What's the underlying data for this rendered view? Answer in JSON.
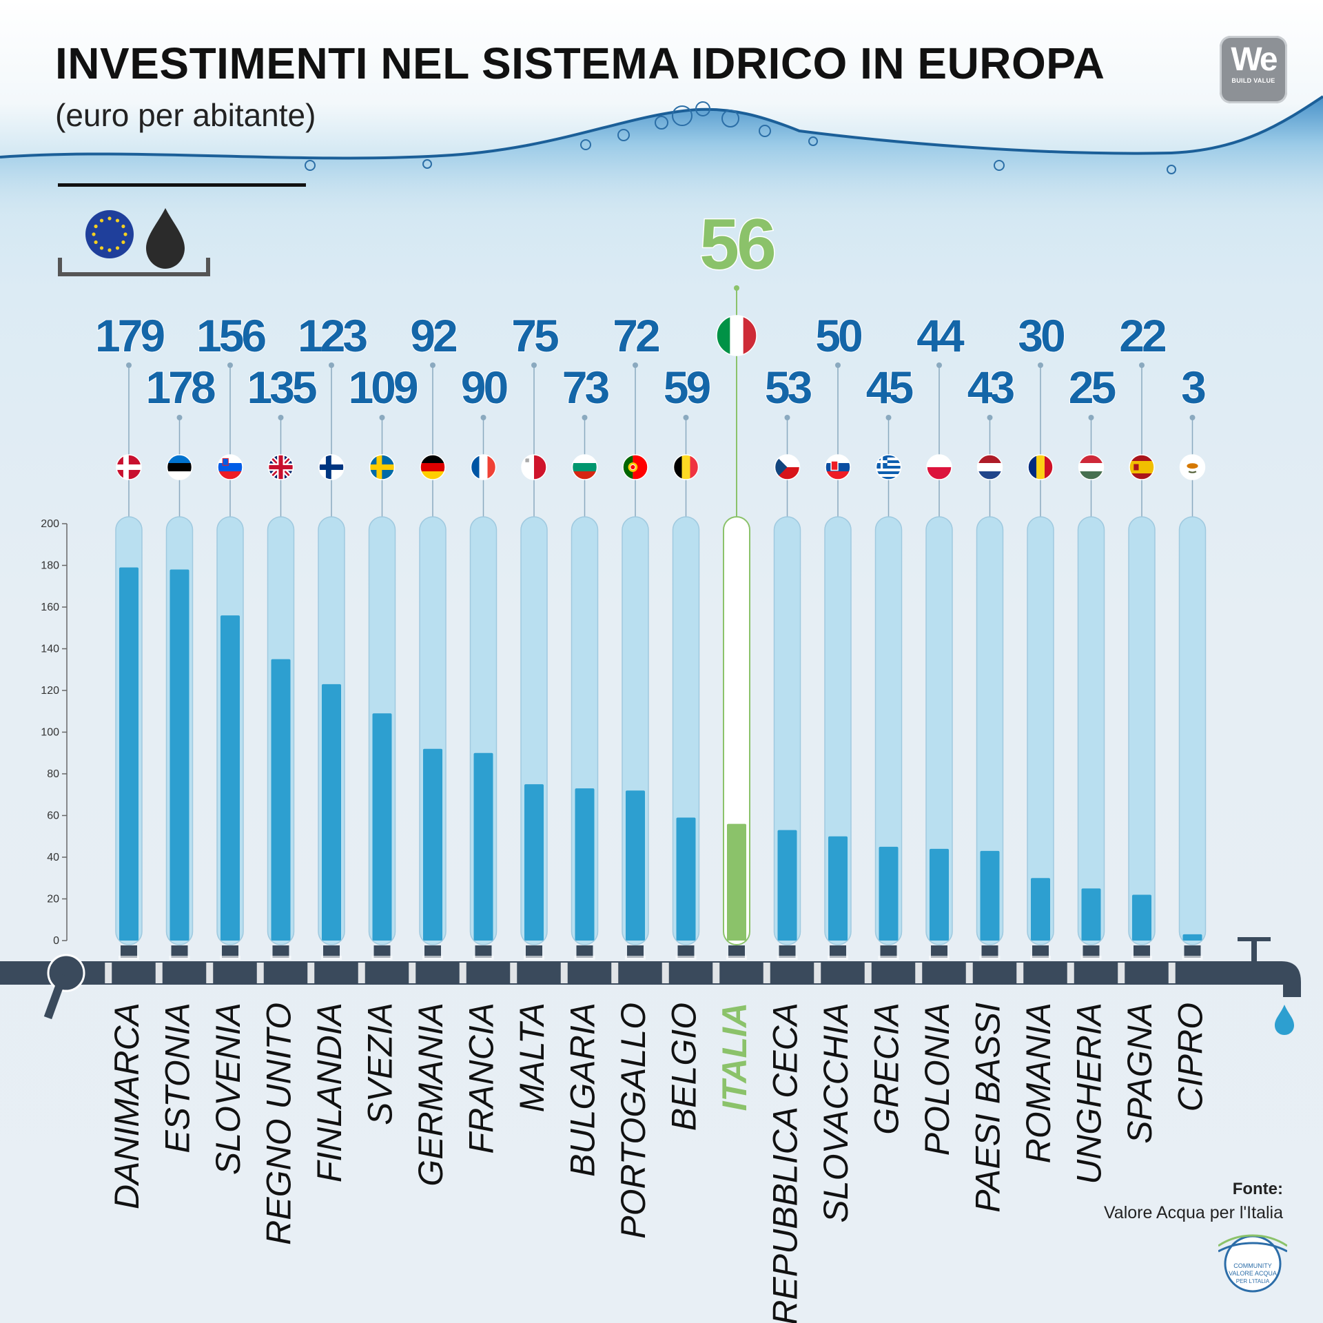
{
  "header": {
    "title": "INVESTIMENTI NEL SISTEMA IDRICO IN EUROPA",
    "subtitle": "(euro per abitante)"
  },
  "brand": {
    "mark": "We",
    "tagline": "BUILD VALUE"
  },
  "source": {
    "label": "Fonte:",
    "value": "Valore Acqua per l'Italia"
  },
  "community_logo": {
    "line1": "COMMUNITY",
    "line2": "VALORE ACQUA",
    "line3": "PER L'ITALIA"
  },
  "colors": {
    "bar": "#2d9fd0",
    "tube": "#b9dff0",
    "highlight": "#8bc26a",
    "value_text": "#1466a8",
    "pipe": "#3a4a5c"
  },
  "chart_data": {
    "type": "bar",
    "categories": [
      "DANIMARCA",
      "ESTONIA",
      "SLOVENIA",
      "REGNO UNITO",
      "FINLANDIA",
      "SVEZIA",
      "GERMANIA",
      "FRANCIA",
      "MALTA",
      "BULGARIA",
      "PORTOGALLO",
      "BELGIO",
      "ITALIA",
      "REPUBBLICA CECA",
      "SLOVACCHIA",
      "GRECIA",
      "POLONIA",
      "PAESI BASSI",
      "ROMANIA",
      "UNGHERIA",
      "SPAGNA",
      "CIPRO"
    ],
    "values": [
      179,
      178,
      156,
      135,
      123,
      109,
      92,
      90,
      75,
      73,
      72,
      59,
      56,
      53,
      50,
      45,
      44,
      43,
      30,
      25,
      22,
      3
    ],
    "flags": [
      "denmark-flag",
      "estonia-flag",
      "slovenia-flag",
      "uk-flag",
      "finland-flag",
      "sweden-flag",
      "germany-flag",
      "france-flag",
      "malta-flag",
      "bulgaria-flag",
      "portugal-flag",
      "belgium-flag",
      "italy-flag",
      "czech-flag",
      "slovakia-flag",
      "greece-flag",
      "poland-flag",
      "netherlands-flag",
      "romania-flag",
      "hungary-flag",
      "spain-flag",
      "cyprus-flag"
    ],
    "highlight": "ITALIA",
    "title": "INVESTIMENTI NEL SISTEMA IDRICO IN EUROPA",
    "ylabel": "",
    "xlabel": "",
    "ylim": [
      0,
      200
    ],
    "yticks": [
      0,
      20,
      40,
      60,
      80,
      100,
      120,
      140,
      160,
      180,
      200
    ],
    "grid": false,
    "legend": "none"
  }
}
